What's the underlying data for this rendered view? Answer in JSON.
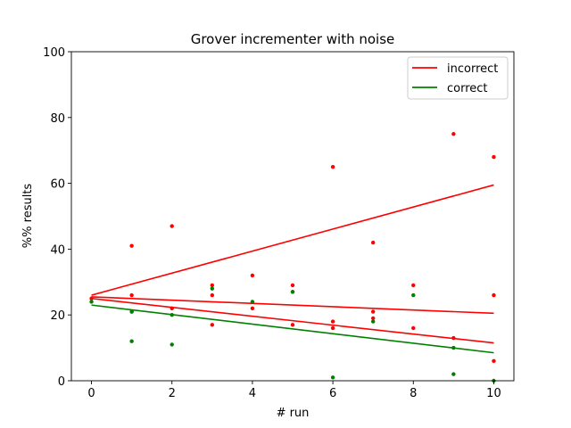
{
  "chart_data": {
    "type": "scatter",
    "title": "Grover incrementer with noise",
    "xlabel": "# run",
    "ylabel": "%% results",
    "xlim": [
      -0.5,
      10.5
    ],
    "ylim": [
      0,
      100
    ],
    "xticks": [
      0,
      2,
      4,
      6,
      8,
      10
    ],
    "yticks": [
      0,
      20,
      40,
      60,
      80,
      100
    ],
    "grid": false,
    "legend_position": "top-right",
    "colors": {
      "incorrect": "#ff0000",
      "correct": "#008000"
    },
    "legend": [
      {
        "label": "incorrect",
        "color": "#ff0000"
      },
      {
        "label": "correct",
        "color": "#008000"
      }
    ],
    "series": [
      {
        "name": "incorrect",
        "color": "#ff0000",
        "points": [
          [
            0,
            25
          ],
          [
            1,
            41
          ],
          [
            1,
            26
          ],
          [
            1,
            21
          ],
          [
            2,
            47
          ],
          [
            2,
            22
          ],
          [
            3,
            29
          ],
          [
            3,
            26
          ],
          [
            3,
            17
          ],
          [
            4,
            32
          ],
          [
            4,
            22
          ],
          [
            5,
            29
          ],
          [
            5,
            27
          ],
          [
            5,
            17
          ],
          [
            6,
            65
          ],
          [
            6,
            18
          ],
          [
            6,
            16
          ],
          [
            7,
            42
          ],
          [
            7,
            21
          ],
          [
            7,
            19
          ],
          [
            8,
            29
          ],
          [
            8,
            16
          ],
          [
            9,
            75
          ],
          [
            9,
            13
          ],
          [
            10,
            68
          ],
          [
            10,
            26
          ],
          [
            10,
            6
          ]
        ],
        "trend_lines": [
          [
            [
              0,
              26
            ],
            [
              10,
              59.5
            ]
          ],
          [
            [
              0,
              25.5
            ],
            [
              10,
              20.5
            ]
          ],
          [
            [
              0,
              25
            ],
            [
              10,
              11.5
            ]
          ]
        ]
      },
      {
        "name": "correct",
        "color": "#008000",
        "points": [
          [
            0,
            24
          ],
          [
            1,
            21
          ],
          [
            1,
            12
          ],
          [
            2,
            20
          ],
          [
            2,
            11
          ],
          [
            3,
            28
          ],
          [
            4,
            24
          ],
          [
            5,
            27
          ],
          [
            6,
            1
          ],
          [
            7,
            18
          ],
          [
            8,
            26
          ],
          [
            9,
            10
          ],
          [
            9,
            2
          ],
          [
            10,
            0
          ]
        ],
        "trend_lines": [
          [
            [
              0,
              23
            ],
            [
              10,
              8.5
            ]
          ]
        ]
      }
    ]
  }
}
